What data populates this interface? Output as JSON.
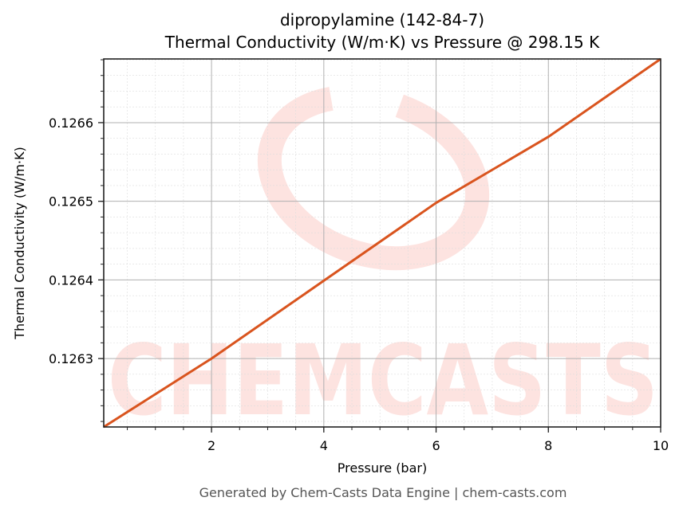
{
  "title_line1": "dipropylamine (142-84-7)",
  "title_line2": "Thermal Conductivity (W/m·K) vs Pressure @ 298.15 K",
  "footer": "Generated by Chem-Casts Data Engine | chem-casts.com",
  "watermark": "CHEMCASTS",
  "colors": {
    "line": "#d9541e",
    "watermark": "#fde3e0",
    "grid_major": "#b0b0b0",
    "grid_minor": "#dddddd"
  },
  "chart_data": {
    "type": "line",
    "title": "dipropylamine (142-84-7)\nThermal Conductivity (W/m·K) vs Pressure @ 298.15 K",
    "xlabel": "Pressure (bar)",
    "ylabel": "Thermal Conductivity (W/m·K)",
    "xlim": [
      0.08,
      10
    ],
    "ylim": [
      0.126213,
      0.126681
    ],
    "xticks": [
      2,
      4,
      6,
      8,
      10
    ],
    "xtick_labels": [
      "2",
      "4",
      "6",
      "8",
      "10"
    ],
    "yticks": [
      0.1263,
      0.1264,
      0.1265,
      0.1266
    ],
    "ytick_labels": [
      "0.1263",
      "0.1264",
      "0.1265",
      "0.1266"
    ],
    "grid": true,
    "legend": null,
    "series": [
      {
        "name": "Thermal Conductivity",
        "x": [
          0.08,
          2,
          4,
          6,
          8,
          10
        ],
        "y": [
          0.126213,
          0.1263,
          0.126399,
          0.126498,
          0.126582,
          0.126681
        ]
      }
    ]
  }
}
